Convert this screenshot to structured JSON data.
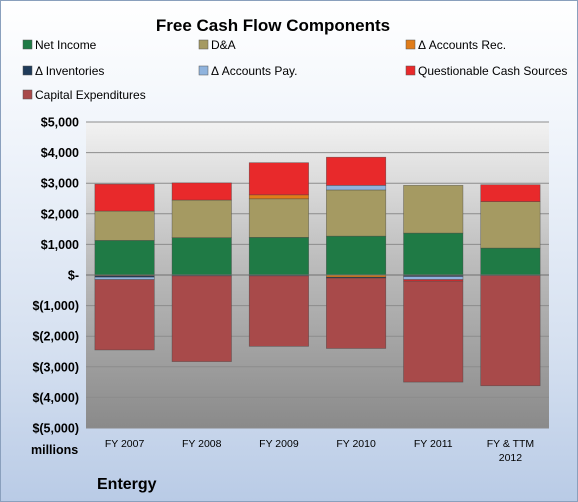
{
  "chart_data": {
    "type": "bar",
    "stacked": true,
    "title": "Free Cash Flow Components",
    "units_label": "millions",
    "company": "Entergy",
    "categories": [
      "FY 2007",
      "FY 2008",
      "FY 2009",
      "FY 2010",
      "FY 2011",
      "FY & TTM 2012"
    ],
    "ylim": [
      -5000,
      5000
    ],
    "yticks": [
      {
        "value": 5000,
        "label": "$5,000"
      },
      {
        "value": 4000,
        "label": "$4,000"
      },
      {
        "value": 3000,
        "label": "$3,000"
      },
      {
        "value": 2000,
        "label": "$2,000"
      },
      {
        "value": 1000,
        "label": "$1,000"
      },
      {
        "value": 0,
        "label": "$-"
      },
      {
        "value": -1000,
        "label": "$(1,000)"
      },
      {
        "value": -2000,
        "label": "$(2,000)"
      },
      {
        "value": -3000,
        "label": "$(3,000)"
      },
      {
        "value": -4000,
        "label": "$(4,000)"
      },
      {
        "value": -5000,
        "label": "$(5,000)"
      }
    ],
    "grid": true,
    "legend_position": "top",
    "series": [
      {
        "name": "Net Income",
        "color": "#1f7a45",
        "values": [
          1130,
          1220,
          1230,
          1270,
          1370,
          880
        ]
      },
      {
        "name": "D&A",
        "color": "#a59a62",
        "values": [
          960,
          1230,
          1260,
          1510,
          1560,
          1520
        ]
      },
      {
        "name": "Δ Accounts Rec.",
        "color": "#e07c1a",
        "values": [
          -30,
          0,
          130,
          -70,
          -20,
          0
        ]
      },
      {
        "name": "Δ Inventories",
        "color": "#1f3b5a",
        "values": [
          -40,
          -30,
          -30,
          -30,
          -30,
          -20
        ]
      },
      {
        "name": "Δ Accounts Pay.",
        "color": "#8fb3dd",
        "values": [
          -80,
          0,
          0,
          150,
          -100,
          0
        ]
      },
      {
        "name": "Questionable Cash Sources",
        "color": "#e8292b",
        "values": [
          880,
          560,
          1050,
          920,
          -50,
          550
        ]
      },
      {
        "name": "Capital Expenditures",
        "color": "#a84a4a",
        "values": [
          -2300,
          -2800,
          -2300,
          -2300,
          -3300,
          -3600
        ]
      }
    ]
  }
}
